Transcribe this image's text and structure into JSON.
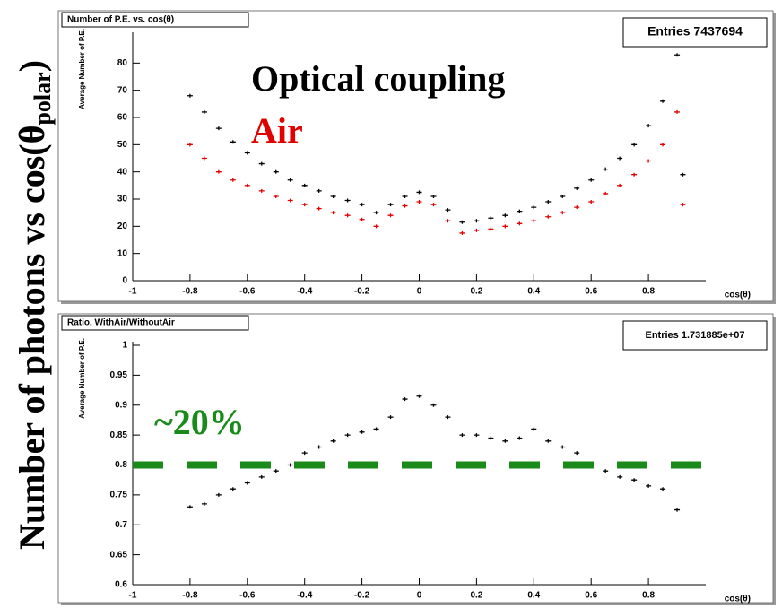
{
  "side_label": [
    "Number of photons vs cos(θ",
    "polar",
    ")"
  ],
  "chart_data": [
    {
      "type": "scatter",
      "title": "Number of P.E. vs. cos(θ)",
      "stats": "Entries 7437694",
      "xlabel": "cos(θ)",
      "ylabel": "Average Number of P.E.",
      "annotations": [
        {
          "text": "Optical coupling",
          "color": "#000000"
        },
        {
          "text": "Air",
          "color": "#e00000"
        }
      ],
      "x": [
        -0.8,
        -0.75,
        -0.7,
        -0.65,
        -0.6,
        -0.55,
        -0.5,
        -0.45,
        -0.4,
        -0.35,
        -0.3,
        -0.25,
        -0.2,
        -0.15,
        -0.1,
        -0.05,
        0,
        0.05,
        0.1,
        0.15,
        0.2,
        0.25,
        0.3,
        0.35,
        0.4,
        0.45,
        0.5,
        0.55,
        0.6,
        0.65,
        0.7,
        0.75,
        0.8,
        0.85,
        0.9,
        0.92
      ],
      "series": [
        {
          "name": "Optical coupling",
          "color": "#000000",
          "values": [
            68,
            62,
            56,
            51,
            47,
            43,
            40,
            37,
            35,
            33,
            31,
            29.5,
            28,
            25,
            28,
            31,
            32.5,
            31,
            26,
            21.5,
            22,
            23,
            24,
            25.5,
            27,
            29,
            31,
            34,
            37,
            41,
            45,
            50,
            57,
            66,
            83,
            39
          ]
        },
        {
          "name": "Air",
          "color": "#e00000",
          "values": [
            50,
            45,
            40,
            37,
            35,
            33,
            31,
            29.5,
            28,
            26.5,
            25,
            24,
            22.5,
            20,
            24,
            27.5,
            29,
            28,
            22,
            17.5,
            18.5,
            19,
            20,
            21,
            22,
            23.5,
            25,
            27,
            29,
            32,
            35,
            39,
            44,
            50,
            62,
            28
          ]
        }
      ],
      "xlim": [
        -1,
        1
      ],
      "xticks": [
        -1,
        -0.8,
        -0.6,
        -0.4,
        -0.2,
        0,
        0.2,
        0.4,
        0.6,
        0.8
      ],
      "ylim": [
        0,
        90
      ],
      "yticks": [
        0,
        10,
        20,
        30,
        40,
        50,
        60,
        70,
        80
      ]
    },
    {
      "type": "scatter",
      "title": "Ratio, WithAir/WithoutAir",
      "stats": "Entries  1.731885e+07",
      "xlabel": "cos(θ)",
      "ylabel": "Average Number of P.E.",
      "annotations": [
        {
          "text": "~20%",
          "color": "#1a8a1a"
        }
      ],
      "hline": {
        "value": 0.8,
        "color": "#1a8a1a"
      },
      "x": [
        -0.8,
        -0.75,
        -0.7,
        -0.65,
        -0.6,
        -0.55,
        -0.5,
        -0.45,
        -0.4,
        -0.35,
        -0.3,
        -0.25,
        -0.2,
        -0.15,
        -0.1,
        -0.05,
        0,
        0.05,
        0.1,
        0.15,
        0.2,
        0.25,
        0.3,
        0.35,
        0.4,
        0.45,
        0.5,
        0.55,
        0.6,
        0.65,
        0.7,
        0.75,
        0.8,
        0.85,
        0.9
      ],
      "series": [
        {
          "name": "Ratio",
          "color": "#000000",
          "values": [
            0.73,
            0.735,
            0.75,
            0.76,
            0.77,
            0.78,
            0.79,
            0.8,
            0.82,
            0.83,
            0.84,
            0.85,
            0.855,
            0.86,
            0.88,
            0.91,
            0.915,
            0.9,
            0.88,
            0.85,
            0.85,
            0.845,
            0.84,
            0.845,
            0.86,
            0.84,
            0.83,
            0.82,
            0.8,
            0.79,
            0.78,
            0.775,
            0.765,
            0.76,
            0.725
          ]
        }
      ],
      "xlim": [
        -1,
        1
      ],
      "xticks": [
        -1,
        -0.8,
        -0.6,
        -0.4,
        -0.2,
        0,
        0.2,
        0.4,
        0.6,
        0.8
      ],
      "ylim": [
        0.6,
        1
      ],
      "yticks": [
        0.6,
        0.65,
        0.7,
        0.75,
        0.8,
        0.85,
        0.9,
        0.95,
        1
      ]
    }
  ]
}
